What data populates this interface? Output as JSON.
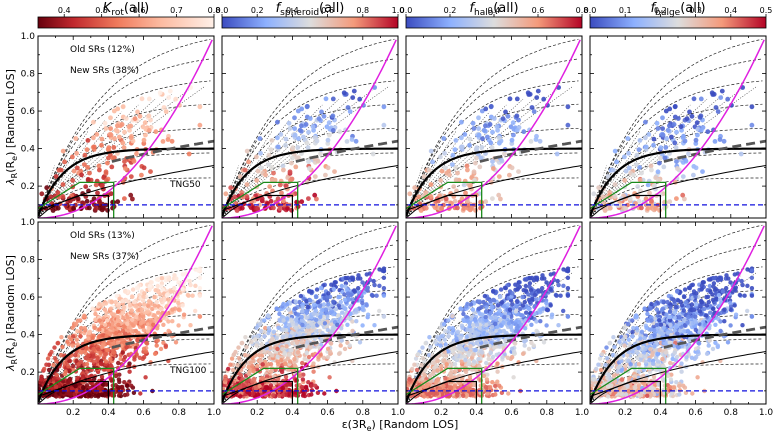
{
  "chart_data": {
    "type": "scatter",
    "description_axes": {
      "xlabel": "ε(3R_e) [Random LOS]",
      "ylabel": "λ_R(R_e) [Random LOS]",
      "xlim": [
        0,
        1
      ],
      "ylim": [
        0.03,
        1.0
      ],
      "xticks": [
        "0.2",
        "0.4",
        "0.6",
        "0.8",
        "1.0"
      ],
      "yticks": [
        "0.2",
        "0.4",
        "0.6",
        "0.8",
        "1.0"
      ]
    },
    "xlabel_pre": "ε(3R",
    "xlabel_sub": "e",
    "xlabel_post": ") [Random LOS]",
    "ylabel_pre": "λ",
    "ylabel_sub1": "R",
    "ylabel_mid": "(R",
    "ylabel_sub2": "e",
    "ylabel_post": ") [Random LOS]",
    "colorbars": [
      {
        "name_main": "K",
        "name_sub": "rot",
        "name_tail": "(all)",
        "cmap": "reds_r",
        "range": [
          0.33,
          0.8
        ],
        "ticks": [
          "0.4",
          "0.5",
          "0.6",
          "0.7",
          "0.8"
        ],
        "tick_values": [
          0.4,
          0.5,
          0.6,
          0.7,
          0.8
        ]
      },
      {
        "name_main": "f",
        "name_sub": "spheroid",
        "name_tail": "(all)",
        "cmap": "coolwarm",
        "range": [
          0,
          1
        ],
        "ticks": [
          "0.0",
          "0.2",
          "0.4",
          "0.6",
          "0.8",
          "1.0"
        ],
        "tick_values": [
          0,
          0.2,
          0.4,
          0.6,
          0.8,
          1.0
        ]
      },
      {
        "name_main": "f",
        "name_sub": "halo",
        "name_tail": "(all)",
        "cmap": "coolwarm",
        "range": [
          0,
          0.8
        ],
        "ticks": [
          "0.0",
          "0.2",
          "0.4",
          "0.6",
          "0.8"
        ],
        "tick_values": [
          0,
          0.2,
          0.4,
          0.6,
          0.8
        ]
      },
      {
        "name_main": "f",
        "name_sub": "bulge",
        "name_tail": "(all)",
        "cmap": "coolwarm",
        "range": [
          0,
          0.5
        ],
        "ticks": [
          "0.0",
          "0.1",
          "0.2",
          "0.3",
          "0.4",
          "0.5"
        ],
        "tick_values": [
          0,
          0.1,
          0.2,
          0.3,
          0.4,
          0.5
        ]
      }
    ],
    "rows": [
      {
        "label": "TNG50",
        "old_srs": "Old SRs (12%)",
        "new_srs": "New SRs (38%)",
        "n_points": 240
      },
      {
        "label": "TNG100",
        "old_srs": "Old SRs (13%)",
        "new_srs": "New SRs (37%)",
        "n_points": 1300
      }
    ],
    "reference_lines": {
      "selection_threshold_lambda": 0.1,
      "old_sr_box": {
        "eps_max": 0.4,
        "lambda_max": 0.15
      },
      "new_sr_box": {
        "eps_max": 0.43,
        "lambda_max": 0.22
      },
      "edge_on_isotropic_curve_coeff": 0.31,
      "magenta_curve": "edge-on anisotropic (beta=0.7 eps)",
      "thick_dashed_curve": "fast/slow boundary (0.31 sqrt eps)+0.1"
    }
  }
}
